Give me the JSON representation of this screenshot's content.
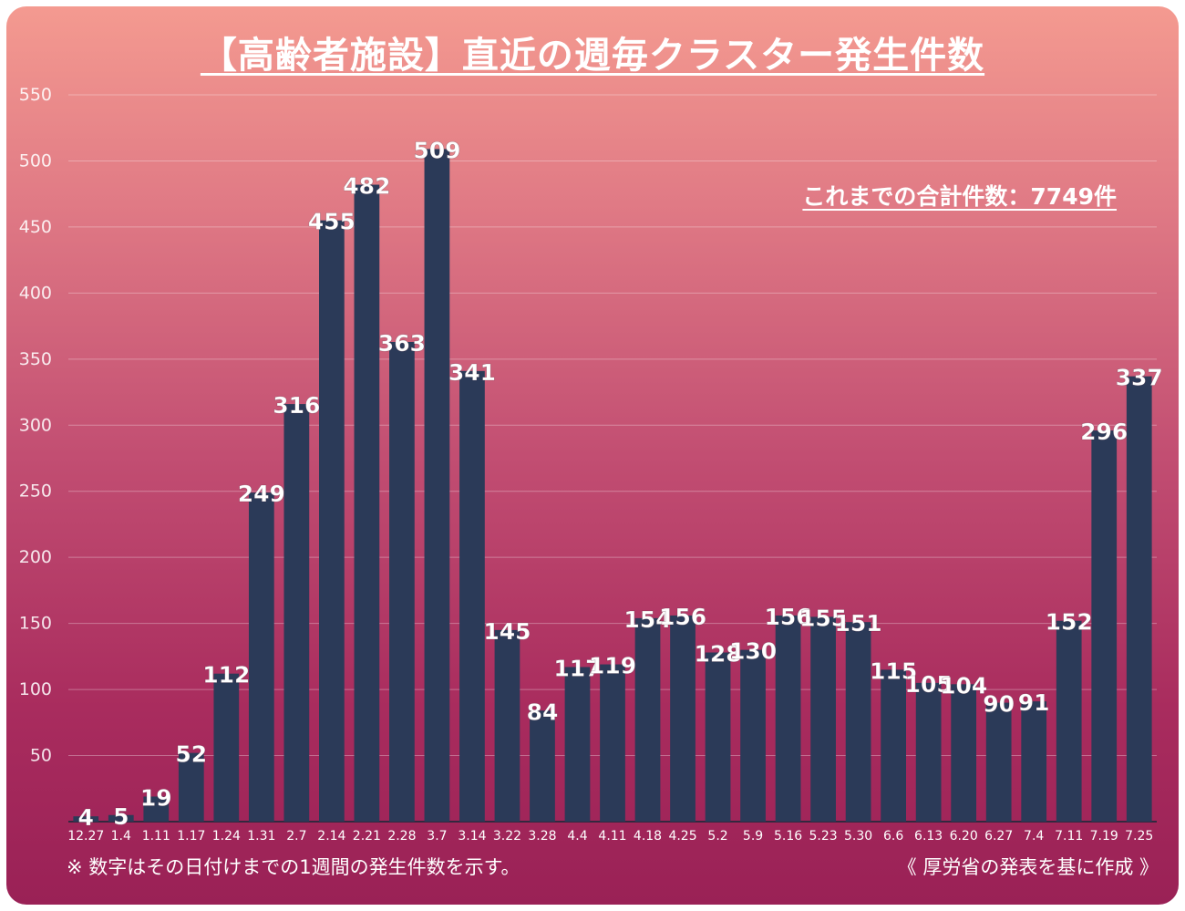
{
  "chart_data": {
    "type": "bar",
    "title": "【高齢者施設】直近の週毎クラスター発生件数",
    "xlabel": "",
    "ylabel": "",
    "ylim": [
      0,
      550
    ],
    "yticks": [
      50,
      100,
      150,
      200,
      250,
      300,
      350,
      400,
      450,
      500,
      550
    ],
    "grid": true,
    "categories": [
      "12.27",
      "1.4",
      "1.11",
      "1.17",
      "1.24",
      "1.31",
      "2.7",
      "2.14",
      "2.21",
      "2.28",
      "3.7",
      "3.14",
      "3.22",
      "3.28",
      "4.4",
      "4.11",
      "4.18",
      "4.25",
      "5.2",
      "5.9",
      "5.16",
      "5.23",
      "5.30",
      "6.6",
      "6.13",
      "6.20",
      "6.27",
      "7.4",
      "7.11",
      "7.19",
      "7.25"
    ],
    "values": [
      4,
      5,
      19,
      52,
      112,
      249,
      316,
      455,
      482,
      363,
      509,
      341,
      145,
      84,
      117,
      119,
      154,
      156,
      128,
      130,
      156,
      155,
      151,
      115,
      105,
      104,
      90,
      91,
      152,
      296,
      337
    ],
    "bar_color": "#2b3a58",
    "annotations": {
      "total": "これまでの合計件数：7749件",
      "footnote": "※ 数字はその日付けまでの1週間の発生件数を示す。",
      "source": "《 厚労省の発表を基に作成 》"
    }
  }
}
